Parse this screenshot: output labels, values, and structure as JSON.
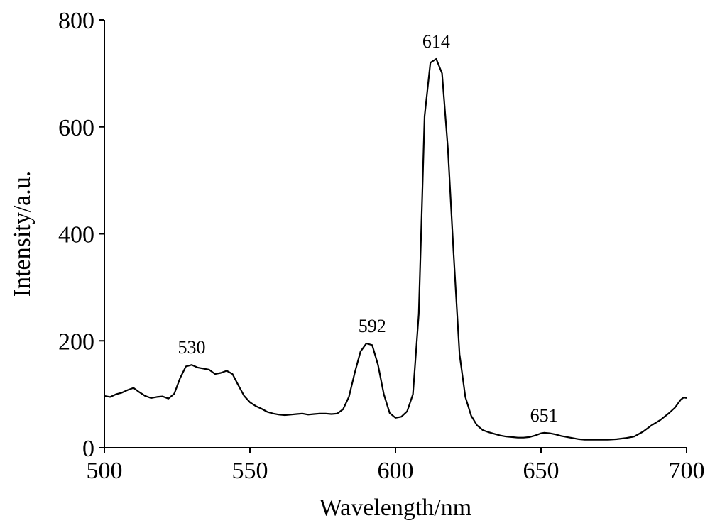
{
  "chart_data": {
    "type": "line",
    "title": "",
    "xlabel": "Wavelength/nm",
    "ylabel": "Intensity/a.u.",
    "xlim": [
      500,
      700
    ],
    "ylim": [
      0,
      800
    ],
    "x_ticks": [
      500,
      550,
      600,
      650,
      700
    ],
    "y_ticks": [
      0,
      200,
      400,
      600,
      800
    ],
    "grid": false,
    "legend": "none",
    "line_color": "#000000",
    "series": [
      {
        "x": [
          500,
          502,
          504,
          506,
          508,
          510,
          512,
          514,
          516,
          518,
          520,
          522,
          524,
          526,
          528,
          530,
          532,
          534,
          536,
          538,
          540,
          542,
          544,
          546,
          548,
          550,
          552,
          554,
          556,
          558,
          560,
          562,
          564,
          566,
          568,
          570,
          572,
          574,
          576,
          578,
          580,
          582,
          584,
          586,
          588,
          590,
          592,
          594,
          596,
          598,
          600,
          602,
          604,
          606,
          608,
          610,
          612,
          614,
          616,
          618,
          620,
          622,
          624,
          626,
          628,
          630,
          632,
          634,
          636,
          638,
          640,
          642,
          644,
          646,
          648,
          650,
          651,
          653,
          655,
          657,
          659,
          661,
          663,
          665,
          667,
          670,
          673,
          676,
          679,
          682,
          685,
          688,
          691,
          694,
          696,
          698,
          699,
          700
        ],
        "y": [
          97,
          95,
          100,
          103,
          108,
          112,
          104,
          97,
          93,
          95,
          96,
          92,
          101,
          130,
          152,
          155,
          150,
          148,
          146,
          138,
          140,
          144,
          138,
          117,
          97,
          85,
          78,
          73,
          67,
          64,
          62,
          61,
          62,
          63,
          64,
          62,
          63,
          64,
          64,
          63,
          64,
          72,
          95,
          140,
          180,
          195,
          192,
          155,
          100,
          65,
          56,
          58,
          68,
          100,
          250,
          620,
          720,
          727,
          700,
          560,
          360,
          175,
          95,
          60,
          42,
          33,
          29,
          26,
          23,
          21,
          20,
          19,
          19,
          20,
          23,
          27,
          28,
          27,
          25,
          22,
          20,
          18,
          16,
          15,
          15,
          15,
          15,
          16,
          18,
          21,
          30,
          42,
          52,
          65,
          75,
          90,
          94,
          93
        ]
      }
    ],
    "annotations": [
      {
        "text": "530",
        "x": 530,
        "y": 155
      },
      {
        "text": "592",
        "x": 592,
        "y": 195
      },
      {
        "text": "614",
        "x": 614,
        "y": 727
      },
      {
        "text": "651",
        "x": 651,
        "y": 28
      }
    ]
  }
}
